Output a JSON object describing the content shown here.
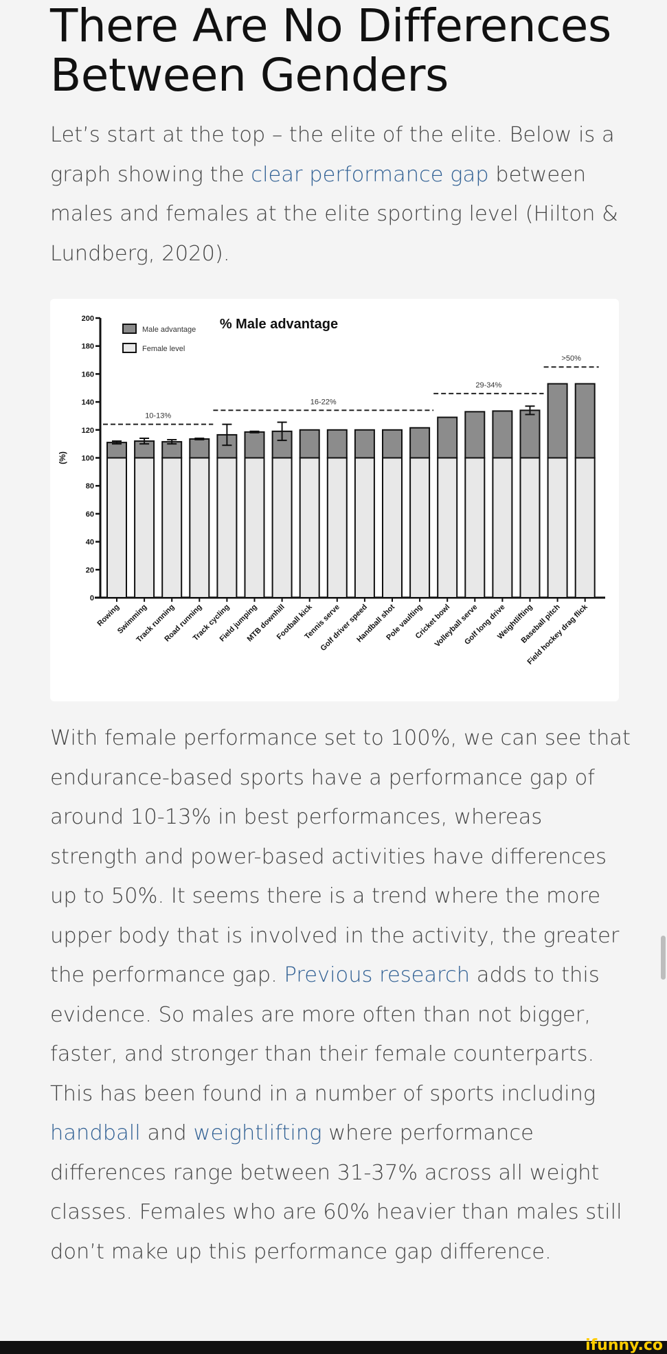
{
  "article": {
    "title": "There Are No Differences Between Genders",
    "paragraph1": [
      {
        "text": "Let’s start at the top – the elite of the elite. Below is a graph showing the ",
        "link": false
      },
      {
        "text": "clear performance gap",
        "link": true
      },
      {
        "text": " between males and females at the elite sporting level (Hilton & Lundberg, 2020).",
        "link": false
      }
    ],
    "paragraph2": [
      {
        "text": "With female performance set to 100%, we can see that endurance-based sports have a performance gap of around 10-13% in best performances, whereas strength and power-based activities have differences up to 50%. It seems there is a trend where the more upper body that is involved in the activity, the greater the performance gap. ",
        "link": false
      },
      {
        "text": "Previous research",
        "link": true
      },
      {
        "text": " adds to this evidence. So males are more often than not bigger, faster, and stronger than their female counterparts. This has been found in a number of sports including ",
        "link": false
      },
      {
        "text": "handball",
        "link": true
      },
      {
        "text": " and ",
        "link": false
      },
      {
        "text": "weightlifting",
        "link": true
      },
      {
        "text": " where performance differences range between 31-37% across all weight classes. Females who are 60% heavier than males still don’t make up this performance gap difference.",
        "link": false
      }
    ]
  },
  "colors": {
    "link": "#2f5f93",
    "male_advantage": "#8c8c8c",
    "female_level": "#e8e8e8",
    "background": "#f4f4f4"
  },
  "footer": {
    "logo": "ifunny.co"
  },
  "chart_data": {
    "type": "bar",
    "stacked": true,
    "title": "% Male advantage",
    "ylabel": "(%)",
    "ylim": [
      0,
      200
    ],
    "yticks": [
      0,
      20,
      40,
      60,
      80,
      100,
      120,
      140,
      160,
      180,
      200
    ],
    "legend": {
      "placement": "top-left",
      "entries": [
        "Male advantage",
        "Female level"
      ]
    },
    "categories": [
      "Rowing",
      "Swimming",
      "Track running",
      "Road running",
      "Track cycling",
      "Field jumping",
      "MTB downhill",
      "Football kick",
      "Tennis serve",
      "Golf driver speed",
      "Handball shot",
      "Pole vaulting",
      "Cricket bowl",
      "Volleyball serve",
      "Golf long drive",
      "Weightlifting",
      "Baseball pitch",
      "Field hockey drag flick"
    ],
    "series": [
      {
        "name": "Female level",
        "values": [
          100,
          100,
          100,
          100,
          100,
          100,
          100,
          100,
          100,
          100,
          100,
          100,
          100,
          100,
          100,
          100,
          100,
          100
        ]
      },
      {
        "name": "Male advantage",
        "values": [
          11,
          12,
          11.5,
          13.5,
          16.5,
          18.5,
          19,
          20,
          20,
          20,
          20,
          21.5,
          29,
          33,
          33.5,
          34,
          53,
          53
        ]
      }
    ],
    "error_bars": [
      1,
      2,
      1.5,
      0.5,
      7.5,
      0.5,
      6.5,
      0,
      0,
      0,
      0,
      0,
      0,
      0,
      0,
      3,
      0,
      0
    ],
    "group_annotations": [
      {
        "label": "10-13%",
        "from": 0,
        "to": 3,
        "y": 124
      },
      {
        "label": "16-22%",
        "from": 4,
        "to": 11,
        "y": 134
      },
      {
        "label": "29-34%",
        "from": 12,
        "to": 15,
        "y": 146
      },
      {
        "label": ">50%",
        "from": 16,
        "to": 17,
        "y": 165
      }
    ]
  }
}
